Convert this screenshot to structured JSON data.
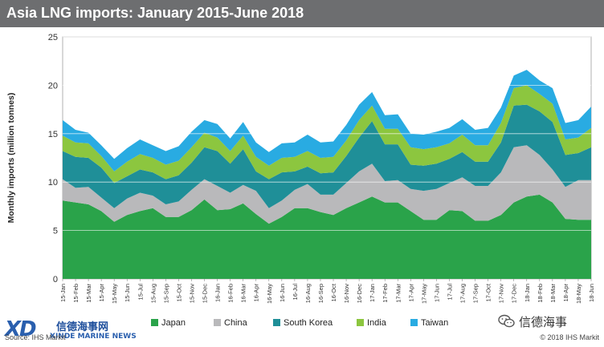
{
  "header": {
    "title": "Asia LNG imports: January 2015-June 2018"
  },
  "footer": {
    "source": "Source: IHS Markit",
    "copyright": "© 2018 IHS Markit",
    "logo_mark": "XD",
    "logo_cn": "信德海事网",
    "logo_en": "XINDE MARINE NEWS",
    "wechat_name": "信德海事"
  },
  "chart_data": {
    "type": "area",
    "stacked": true,
    "title": "Asia LNG imports: January 2015-June 2018",
    "ylabel": "Monthly imports (million tonnes)",
    "xlabel": "",
    "ylim": [
      0,
      25
    ],
    "yticks": [
      0,
      5,
      10,
      15,
      20,
      25
    ],
    "grid": true,
    "legend_position": "bottom",
    "categories": [
      "15-Jan",
      "15-Feb",
      "15-Mar",
      "15-Apr",
      "15-May",
      "15-Jun",
      "15-Jul",
      "15-Aug",
      "15-Sep",
      "15-Oct",
      "15-Nov",
      "15-Dec",
      "16-Jan",
      "16-Feb",
      "16-Mar",
      "16-Apr",
      "16-May",
      "16-Jun",
      "16-Jul",
      "16-Aug",
      "16-Sep",
      "16-Oct",
      "16-Nov",
      "16-Dec",
      "17-Jan",
      "17-Feb",
      "17-Mar",
      "17-Apr",
      "17-May",
      "17-Jun",
      "17-Jul",
      "17-Aug",
      "17-Sep",
      "17-Oct",
      "17-Nov",
      "17-Dec",
      "18-Jan",
      "18-Feb",
      "18-Mar",
      "18-Apr",
      "18-May",
      "18-Jun"
    ],
    "series": [
      {
        "name": "Japan",
        "color": "#2aa34a",
        "values": [
          8.1,
          7.9,
          7.7,
          7.0,
          5.9,
          6.6,
          7.0,
          7.3,
          6.4,
          6.4,
          7.1,
          8.2,
          7.1,
          7.2,
          7.8,
          6.7,
          5.7,
          6.4,
          7.3,
          7.3,
          6.9,
          6.6,
          7.3,
          7.9,
          8.5,
          7.9,
          7.9,
          7.0,
          6.1,
          6.1,
          7.1,
          7.0,
          6.0,
          6.0,
          6.6,
          7.9,
          8.5,
          8.7,
          7.9,
          6.2,
          6.1,
          6.1
        ]
      },
      {
        "name": "China",
        "color": "#b9b9bb",
        "values": [
          2.2,
          1.5,
          1.8,
          1.4,
          1.4,
          1.7,
          1.9,
          1.3,
          1.3,
          1.6,
          2.1,
          2.1,
          2.5,
          1.7,
          1.9,
          2.4,
          1.6,
          1.7,
          1.9,
          2.5,
          1.8,
          2.1,
          2.6,
          3.2,
          3.4,
          2.2,
          2.3,
          2.3,
          3.0,
          3.2,
          2.8,
          3.5,
          3.6,
          3.6,
          4.4,
          5.7,
          5.3,
          4.1,
          3.4,
          3.3,
          4.1,
          4.1
        ]
      },
      {
        "name": "South Korea",
        "color": "#1f8f98",
        "values": [
          2.9,
          3.2,
          3.0,
          3.1,
          2.6,
          2.3,
          2.4,
          2.4,
          2.6,
          2.7,
          2.8,
          3.3,
          3.6,
          3.0,
          3.7,
          2.0,
          3.0,
          2.9,
          1.9,
          1.8,
          2.2,
          2.3,
          2.8,
          3.5,
          4.4,
          3.8,
          3.7,
          2.5,
          2.6,
          2.6,
          2.5,
          2.6,
          2.5,
          2.5,
          3.1,
          4.3,
          4.2,
          4.5,
          4.9,
          3.3,
          2.8,
          3.4
        ]
      },
      {
        "name": "India",
        "color": "#8cc63f",
        "values": [
          1.6,
          1.5,
          1.5,
          1.2,
          1.2,
          1.5,
          1.6,
          1.5,
          1.5,
          1.5,
          1.6,
          1.5,
          1.4,
          1.3,
          1.4,
          1.5,
          1.4,
          1.5,
          1.5,
          1.6,
          1.6,
          1.6,
          1.6,
          1.8,
          1.6,
          1.6,
          1.6,
          1.8,
          1.7,
          1.7,
          1.6,
          1.8,
          1.7,
          1.7,
          2.0,
          1.8,
          2.0,
          1.8,
          1.9,
          1.6,
          1.6,
          2.0
        ]
      },
      {
        "name": "Taiwan",
        "color": "#29abe2",
        "values": [
          1.6,
          1.3,
          1.1,
          1.1,
          1.3,
          1.4,
          1.5,
          1.3,
          1.4,
          1.5,
          1.6,
          1.3,
          1.4,
          1.3,
          1.4,
          1.5,
          1.4,
          1.5,
          1.5,
          1.7,
          1.6,
          1.6,
          1.6,
          1.6,
          1.4,
          1.4,
          1.5,
          1.4,
          1.5,
          1.6,
          1.6,
          1.6,
          1.6,
          1.8,
          1.6,
          1.3,
          1.6,
          1.4,
          1.6,
          1.7,
          1.8,
          2.2
        ]
      }
    ]
  }
}
